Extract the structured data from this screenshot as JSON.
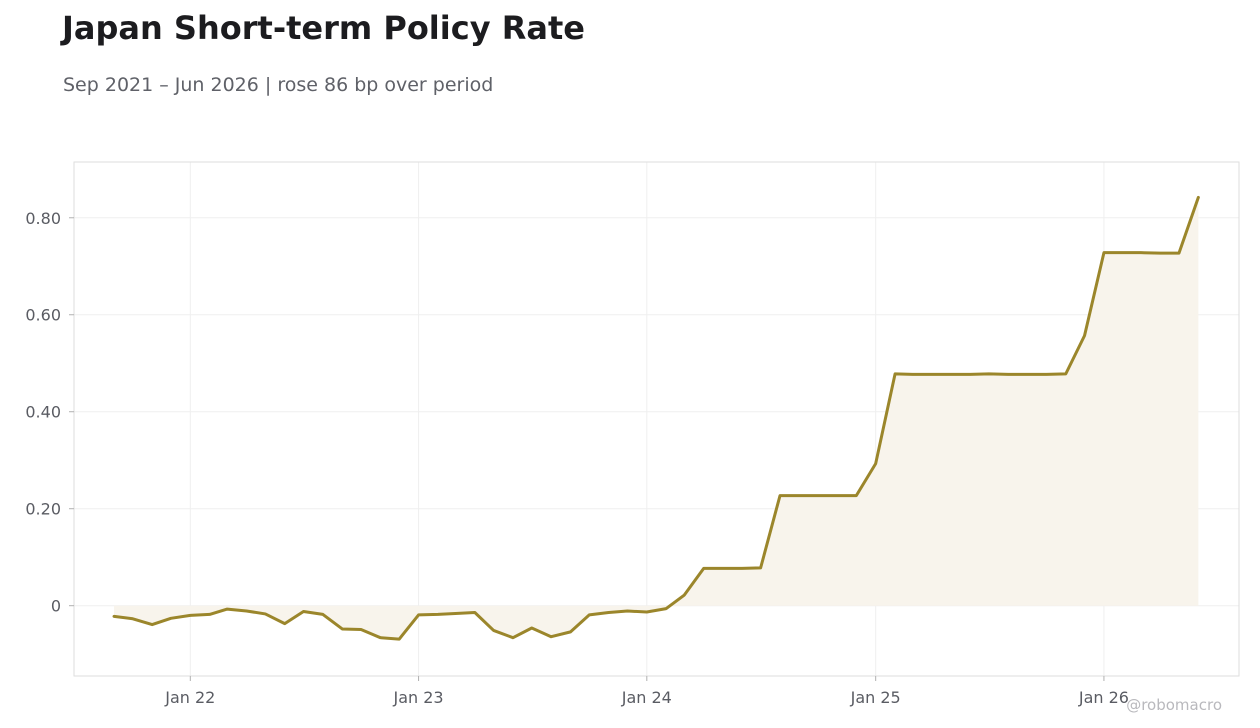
{
  "title": "Japan Short-term Policy Rate",
  "subtitle": "Sep 2021 – Jun 2026 | rose 86 bp over period",
  "credit": "@robomacro",
  "colors": {
    "line": "#9b862b",
    "fill": "#f8f4ec",
    "grid": "#efefef",
    "frame": "#dedede"
  },
  "chart_data": {
    "type": "area",
    "title": "Japan Short-term Policy Rate",
    "subtitle": "Sep 2021 – Jun 2026 | rose 86 bp over period",
    "xlabel": "",
    "ylabel": "",
    "grid": true,
    "legend": "none",
    "xlim": [
      "2021-06-29",
      "2026-08-05"
    ],
    "ylim": [
      -0.145,
      0.915
    ],
    "x_ticks": [
      {
        "date": "2022-01-01",
        "label": "Jan 22"
      },
      {
        "date": "2023-01-01",
        "label": "Jan 23"
      },
      {
        "date": "2024-01-01",
        "label": "Jan 24"
      },
      {
        "date": "2025-01-01",
        "label": "Jan 25"
      },
      {
        "date": "2026-01-01",
        "label": "Jan 26"
      }
    ],
    "y_ticks": [
      {
        "value": 0,
        "label": "0"
      },
      {
        "value": 0.2,
        "label": "0.20"
      },
      {
        "value": 0.4,
        "label": "0.40"
      },
      {
        "value": 0.6,
        "label": "0.60"
      },
      {
        "value": 0.8,
        "label": "0.80"
      }
    ],
    "series": [
      {
        "x": [
          "2021-09-01",
          "2021-10-01",
          "2021-11-01",
          "2021-12-01",
          "2022-01-01",
          "2022-02-01",
          "2022-03-01",
          "2022-04-01",
          "2022-05-01",
          "2022-06-01",
          "2022-07-01",
          "2022-08-01",
          "2022-09-01",
          "2022-10-01",
          "2022-11-01",
          "2022-12-01",
          "2023-01-01",
          "2023-02-01",
          "2023-03-01",
          "2023-04-01",
          "2023-05-01",
          "2023-06-01",
          "2023-07-01",
          "2023-08-01",
          "2023-09-01",
          "2023-10-01",
          "2023-11-01",
          "2023-12-01",
          "2024-01-01",
          "2024-02-01",
          "2024-03-01",
          "2024-04-01",
          "2024-05-01",
          "2024-06-01",
          "2024-07-01",
          "2024-08-01",
          "2024-09-01",
          "2024-10-01",
          "2024-11-01",
          "2024-12-01",
          "2025-01-01",
          "2025-02-01",
          "2025-03-01",
          "2025-04-01",
          "2025-05-01",
          "2025-06-01",
          "2025-07-01",
          "2025-08-01",
          "2025-09-01",
          "2025-10-01",
          "2025-11-01",
          "2025-12-01",
          "2026-01-01",
          "2026-02-01",
          "2026-03-01",
          "2026-04-01",
          "2026-05-01",
          "2026-06-01"
        ],
        "values": [
          -0.022,
          -0.027,
          -0.039,
          -0.026,
          -0.02,
          -0.018,
          -0.007,
          -0.011,
          -0.017,
          -0.037,
          -0.012,
          -0.018,
          -0.048,
          -0.049,
          -0.066,
          -0.069,
          -0.019,
          -0.018,
          -0.016,
          -0.014,
          -0.051,
          -0.066,
          -0.046,
          -0.064,
          -0.054,
          -0.019,
          -0.014,
          -0.011,
          -0.013,
          -0.006,
          0.022,
          0.077,
          0.077,
          0.077,
          0.078,
          0.227,
          0.227,
          0.227,
          0.227,
          0.227,
          0.293,
          0.478,
          0.477,
          0.477,
          0.477,
          0.477,
          0.478,
          0.477,
          0.477,
          0.477,
          0.478,
          0.557,
          0.728,
          0.728,
          0.728,
          0.727,
          0.727,
          0.842
        ]
      }
    ]
  }
}
